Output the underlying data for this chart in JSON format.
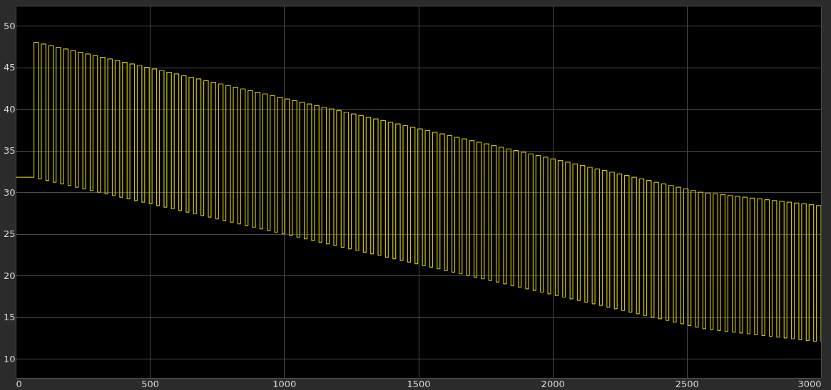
{
  "chart_data": {
    "type": "step",
    "xlim": [
      0,
      3000
    ],
    "xticks": [
      0,
      500,
      1000,
      1500,
      2000,
      2500,
      3000
    ],
    "ylim": [
      7.7,
      52.4
    ],
    "yticks": [
      10,
      15,
      20,
      25,
      30,
      35,
      40,
      45,
      50
    ],
    "grid": true,
    "series": [
      {
        "color": "#c8c000",
        "x": [
          0,
          68,
          85,
          95.5,
          112.5,
          123,
          140,
          150.5,
          167.5,
          178,
          195,
          205.5,
          222.5,
          233,
          250,
          260.5,
          277.5,
          288,
          305,
          315.5,
          332.5,
          343,
          360,
          370.5,
          387.5,
          398,
          415,
          425.5,
          442.5,
          453,
          470,
          480.5,
          497.5,
          508,
          525,
          535.5,
          552.5,
          563,
          580,
          590.5,
          607.5,
          618,
          635,
          645.5,
          662.5,
          673,
          690,
          700.5,
          717.5,
          728,
          745,
          755.5,
          772.5,
          783,
          800,
          810.5,
          827.5,
          838,
          855,
          865.5,
          882.5,
          893,
          910,
          920.5,
          937.5,
          948,
          965,
          975.5,
          992.5,
          1003,
          1020,
          1030.5,
          1047.5,
          1058,
          1075,
          1085.5,
          1102.5,
          1113,
          1130,
          1140.5,
          1157.5,
          1168,
          1185,
          1195.5,
          1212.5,
          1223,
          1240,
          1250.5,
          1267.5,
          1278,
          1295,
          1305.5,
          1322.5,
          1333,
          1350,
          1360.5,
          1377.5,
          1388,
          1405,
          1415.5,
          1432.5,
          1443,
          1460,
          1470.5,
          1487.5,
          1498,
          1515,
          1525.5,
          1542.5,
          1553,
          1570,
          1580.5,
          1597.5,
          1608,
          1625,
          1635.5,
          1652.5,
          1663,
          1680,
          1690.5,
          1707.5,
          1718,
          1735,
          1745.5,
          1762.5,
          1773,
          1790,
          1800.5,
          1817.5,
          1828,
          1845,
          1855.5,
          1872.5,
          1883,
          1900,
          1910.5,
          1927.5,
          1938,
          1955,
          1965.5,
          1982.5,
          1993,
          2010,
          2020.5,
          2037.5,
          2048,
          2065,
          2075.5,
          2092.5,
          2103,
          2120,
          2130.5,
          2147.5,
          2158,
          2175,
          2185.5,
          2202.5,
          2213,
          2230,
          2240.5,
          2257.5,
          2268,
          2285,
          2295.5,
          2312.5,
          2323,
          2340,
          2350.5,
          2367.5,
          2378,
          2395,
          2405.5,
          2422.5,
          2433,
          2450,
          2460.5,
          2477.5,
          2488,
          2505,
          2515.5,
          2532.5,
          2543,
          2560,
          2570.5,
          2587.5,
          2598,
          2615,
          2625.5,
          2642.5,
          2653,
          2670,
          2680.5,
          2697.5,
          2708,
          2725,
          2735.5,
          2752.5,
          2763,
          2780,
          2790.5,
          2807.5,
          2818,
          2835,
          2845.5,
          2862.5,
          2873,
          2890,
          2900.5,
          2917.5,
          2928,
          2945,
          2955.5,
          2972.5,
          2983,
          3000
        ],
        "values": [
          31.8,
          48,
          31.6,
          47.8,
          31.4,
          47.6,
          31.2,
          47.4,
          31,
          47.2,
          30.8,
          47,
          30.6,
          46.8,
          30.4,
          46.6,
          30.2,
          46.4,
          30,
          46.2,
          29.8,
          46,
          29.6,
          45.8,
          29.4,
          45.6,
          29.2,
          45.4,
          29,
          45.2,
          28.8,
          45,
          28.6,
          44.8,
          28.4,
          44.6,
          28.2,
          44.4,
          28,
          44.2,
          27.8,
          44,
          27.6,
          43.8,
          27.4,
          43.6,
          27.2,
          43.4,
          27,
          43.2,
          26.8,
          43,
          26.6,
          42.8,
          26.4,
          42.6,
          26.2,
          42.4,
          26,
          42.2,
          25.8,
          42,
          25.6,
          41.8,
          25.4,
          41.6,
          25.2,
          41.4,
          25,
          41.2,
          24.8,
          41,
          24.6,
          40.8,
          24.4,
          40.6,
          24.2,
          40.4,
          24,
          40.2,
          23.8,
          40,
          23.6,
          39.8,
          23.4,
          39.6,
          23.2,
          39.4,
          23,
          39.2,
          22.8,
          39,
          22.6,
          38.8,
          22.4,
          38.6,
          22.2,
          38.4,
          22,
          38.2,
          21.8,
          38,
          21.6,
          37.8,
          21.4,
          37.6,
          21.2,
          37.4,
          21,
          37.2,
          20.8,
          37,
          20.6,
          36.8,
          20.4,
          36.6,
          20.2,
          36.4,
          20,
          36.2,
          19.8,
          36,
          19.6,
          35.8,
          19.4,
          35.6,
          19.2,
          35.4,
          19,
          35.2,
          18.8,
          35,
          18.6,
          34.8,
          18.4,
          34.6,
          18.2,
          34.4,
          18,
          34.2,
          17.8,
          34,
          17.6,
          33.8,
          17.4,
          33.6,
          17.2,
          33.4,
          17,
          33.2,
          16.8,
          33,
          16.6,
          32.8,
          16.4,
          32.6,
          16.2,
          32.4,
          16,
          32.2,
          15.8,
          32,
          15.6,
          31.8,
          15.4,
          31.6,
          15.2,
          31.4,
          15,
          31.2,
          14.8,
          31,
          14.6,
          30.8,
          14.4,
          30.6,
          14.2,
          30.4,
          14,
          30.2,
          13.8,
          30,
          13.6,
          29.9,
          13.5,
          29.8,
          13.4,
          29.7,
          13.3,
          29.6,
          13.2,
          29.5,
          13.1,
          29.4,
          13,
          29.3,
          12.9,
          29.2,
          12.8,
          29.1,
          12.7,
          29,
          12.6,
          28.9,
          12.5,
          28.8,
          12.4,
          28.7,
          12.3,
          28.6,
          12.2,
          28.5,
          12.1,
          28.4,
          12
        ]
      }
    ]
  }
}
